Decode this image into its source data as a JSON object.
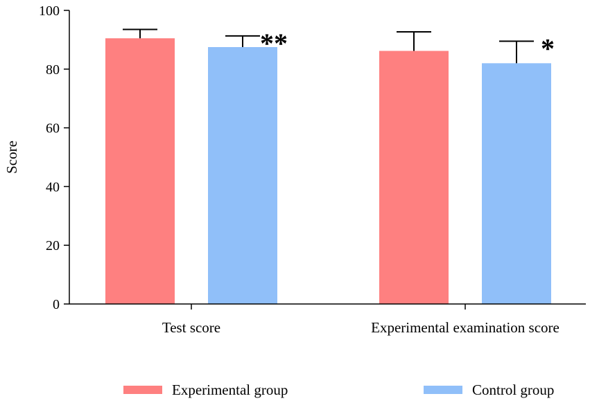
{
  "chart_data": {
    "type": "bar",
    "title": "",
    "xlabel": "",
    "ylabel": "Score",
    "ylim": [
      0,
      100
    ],
    "yticks": [
      0,
      20,
      40,
      60,
      80,
      100
    ],
    "categories": [
      "Test score",
      "Experimental examination score"
    ],
    "series": [
      {
        "name": "Experimental group",
        "color": "#fe8080",
        "values": [
          90.5,
          86.2
        ],
        "errors": [
          3.0,
          6.5
        ]
      },
      {
        "name": "Control group",
        "color": "#90bff9",
        "values": [
          87.5,
          82.0
        ],
        "errors": [
          3.8,
          7.5
        ]
      }
    ],
    "annotations": [
      {
        "category": 0,
        "series": 1,
        "text": "**"
      },
      {
        "category": 1,
        "series": 1,
        "text": "*"
      }
    ],
    "legend": "bottom"
  }
}
